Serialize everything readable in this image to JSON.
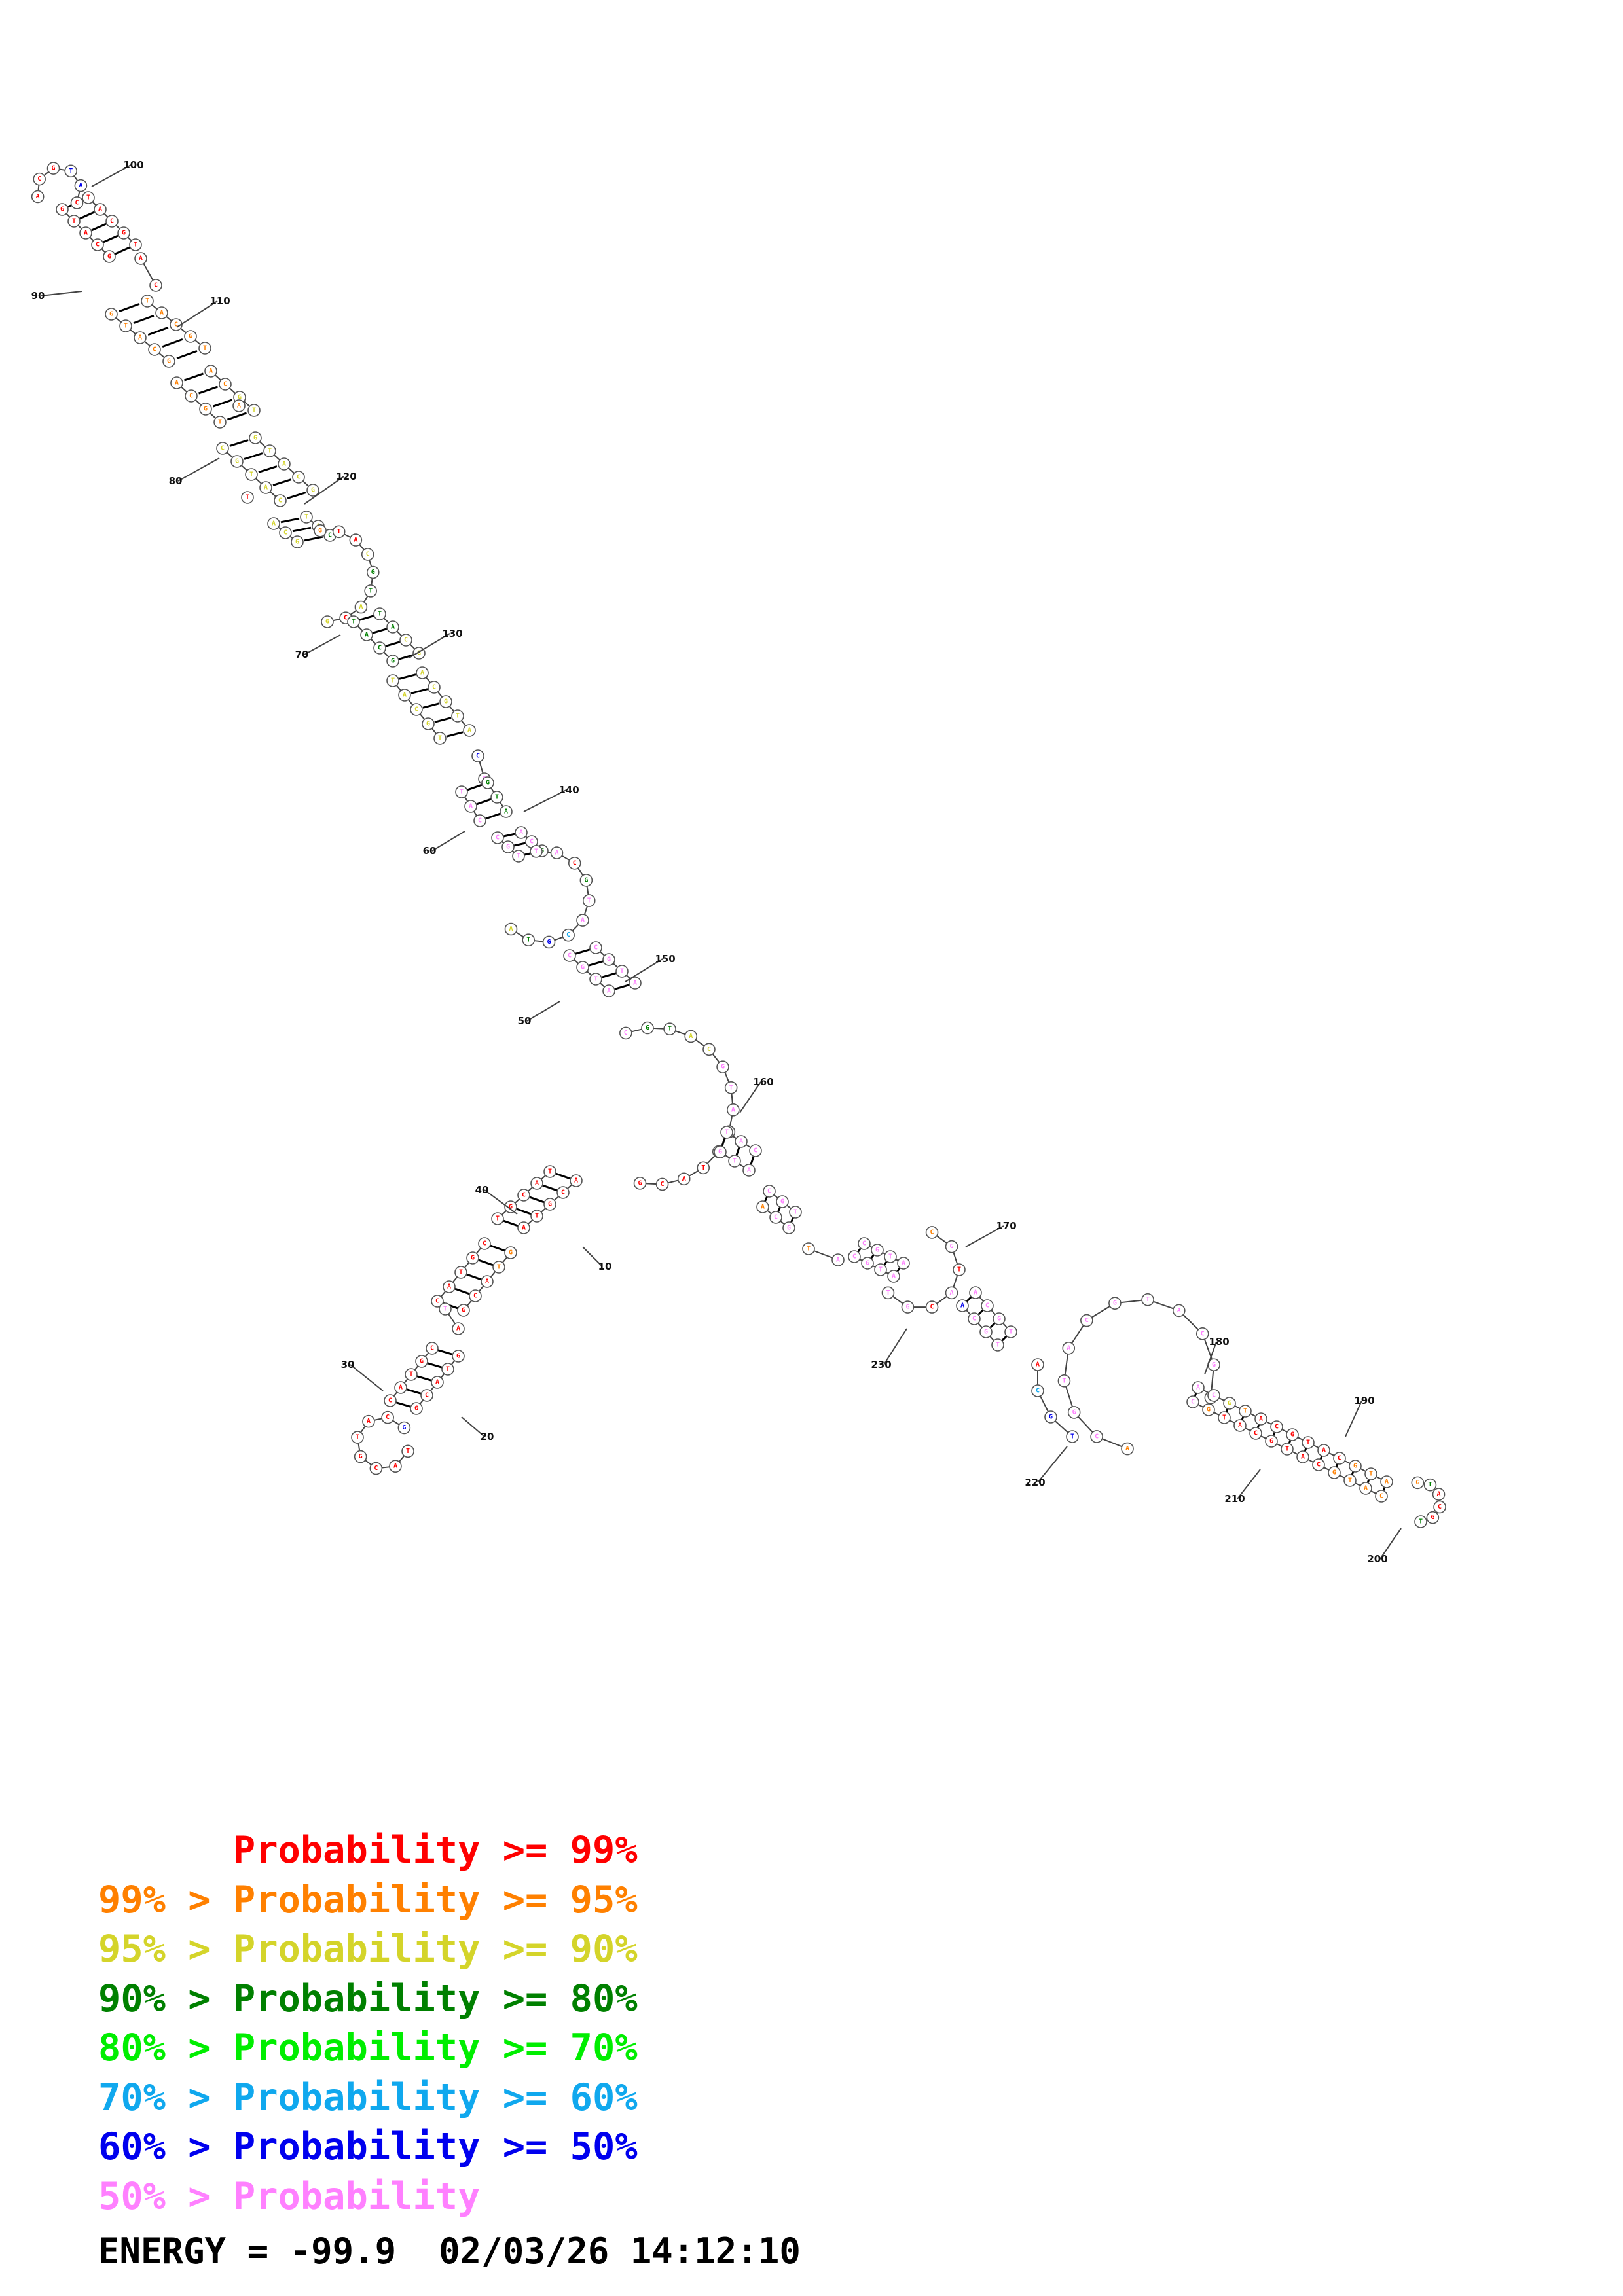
{
  "structure": {
    "position_labels": [
      "10",
      "20",
      "30",
      "40",
      "50",
      "60",
      "70",
      "80",
      "90",
      "100",
      "110",
      "120",
      "130",
      "140",
      "150",
      "160",
      "170",
      "180",
      "190",
      "200",
      "210",
      "220",
      "230"
    ],
    "nucleotides_visible_letters": [
      "A",
      "C",
      "G",
      "T"
    ]
  },
  "legend": {
    "rows": [
      {
        "prefix": "",
        "label": "Probability",
        "suffix": ">= 99%",
        "color": "#ff0000"
      },
      {
        "prefix": "99% > ",
        "label": "Probability",
        "suffix": ">= 95%",
        "color": "#ff8000"
      },
      {
        "prefix": "95% > ",
        "label": "Probability",
        "suffix": ">= 90%",
        "color": "#d4d42a"
      },
      {
        "prefix": "90% > ",
        "label": "Probability",
        "suffix": ">= 80%",
        "color": "#008000"
      },
      {
        "prefix": "80% > ",
        "label": "Probability",
        "suffix": ">= 70%",
        "color": "#00ee00"
      },
      {
        "prefix": "70% > ",
        "label": "Probability",
        "suffix": ">= 60%",
        "color": "#10a8ee"
      },
      {
        "prefix": "60% > ",
        "label": "Probability",
        "suffix": ">= 50%",
        "color": "#0000ee"
      },
      {
        "prefix": "50% > ",
        "label": "Probability",
        "suffix": "",
        "color": "#ff80ff"
      }
    ]
  },
  "footer": {
    "energy": "ENERGY = -99.9  02/03/26 14:12:10"
  },
  "colors": {
    "p99": "#ff0000",
    "p95": "#ff8000",
    "p90": "#d4d42a",
    "p80": "#008000",
    "p70": "#00ee00",
    "p60": "#10a8ee",
    "p50": "#0000ee",
    "low": "#ff80ff"
  }
}
